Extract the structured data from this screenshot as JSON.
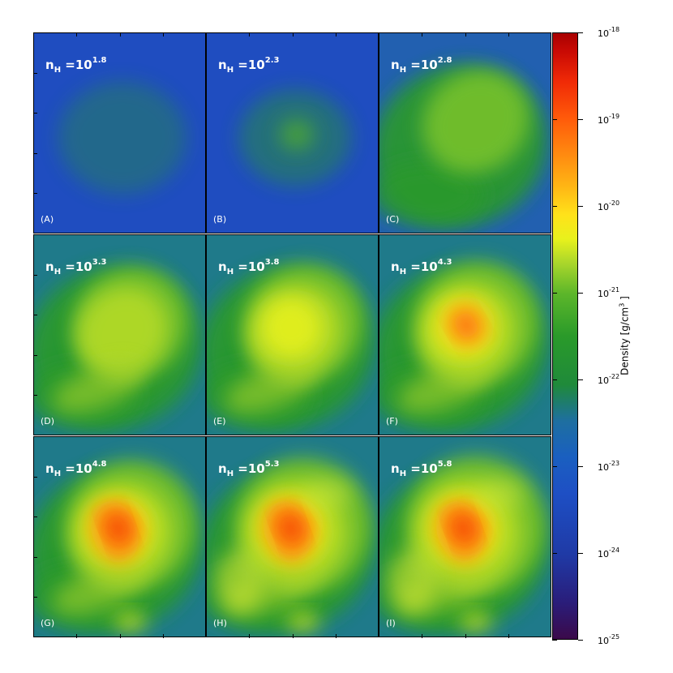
{
  "panels": [
    {
      "id": "A",
      "letter": "(A)",
      "nh_prefix": "n",
      "nh_sub": "H",
      "nh_eq": " =10",
      "nh_exp": "1.8",
      "level": 0.05
    },
    {
      "id": "B",
      "letter": "(B)",
      "nh_prefix": "n",
      "nh_sub": "H",
      "nh_eq": " =10",
      "nh_exp": "2.3",
      "level": 0.15
    },
    {
      "id": "C",
      "letter": "(C)",
      "nh_prefix": "n",
      "nh_sub": "H",
      "nh_eq": " =10",
      "nh_exp": "2.8",
      "level": 0.3
    },
    {
      "id": "D",
      "letter": "(D)",
      "nh_prefix": "n",
      "nh_sub": "H",
      "nh_eq": " =10",
      "nh_exp": "3.3",
      "level": 0.45
    },
    {
      "id": "E",
      "letter": "(E)",
      "nh_prefix": "n",
      "nh_sub": "H",
      "nh_eq": " =10",
      "nh_exp": "3.8",
      "level": 0.55
    },
    {
      "id": "F",
      "letter": "(F)",
      "nh_prefix": "n",
      "nh_sub": "H",
      "nh_eq": " =10",
      "nh_exp": "4.3",
      "level": 0.65
    },
    {
      "id": "G",
      "letter": "(G)",
      "nh_prefix": "n",
      "nh_sub": "H",
      "nh_eq": " =10",
      "nh_exp": "4.8",
      "level": 0.75
    },
    {
      "id": "H",
      "letter": "(H)",
      "nh_prefix": "n",
      "nh_sub": "H",
      "nh_eq": " =10",
      "nh_exp": "5.3",
      "level": 0.85
    },
    {
      "id": "I",
      "letter": "(I)",
      "nh_prefix": "n",
      "nh_sub": "H",
      "nh_eq": " =10",
      "nh_exp": "5.8",
      "level": 0.92
    }
  ],
  "colorbar": {
    "title_prefix": "Density [g/cm",
    "title_exp": "3",
    "title_suffix": " ]",
    "ticks": [
      {
        "base": "10",
        "exp": "-18"
      },
      {
        "base": "10",
        "exp": "-19"
      },
      {
        "base": "10",
        "exp": "-20"
      },
      {
        "base": "10",
        "exp": "-21"
      },
      {
        "base": "10",
        "exp": "-22"
      },
      {
        "base": "10",
        "exp": "-23"
      },
      {
        "base": "10",
        "exp": "-24"
      },
      {
        "base": "10",
        "exp": "-25"
      }
    ]
  },
  "colors": {
    "low": "#1e4fc4",
    "mid": "#2a9a2a",
    "high": "#e8f11c",
    "peak": "#ff5a0a"
  }
}
